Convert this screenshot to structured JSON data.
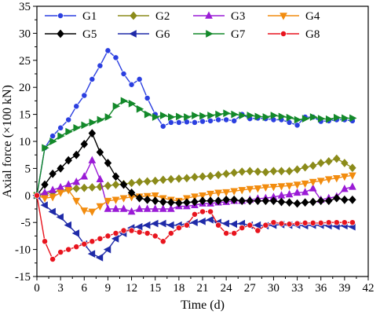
{
  "chart_data": {
    "type": "line",
    "title": "",
    "xlabel": "Time (d)",
    "ylabel": "Axial force (×100 kN)",
    "xlim": [
      0,
      42
    ],
    "ylim": [
      -15,
      35
    ],
    "xticks": [
      0,
      3,
      6,
      9,
      12,
      15,
      18,
      21,
      24,
      27,
      30,
      33,
      36,
      39,
      42
    ],
    "yticks": [
      -15,
      -10,
      -5,
      0,
      5,
      10,
      15,
      20,
      25,
      30,
      35
    ],
    "grid": false,
    "legend_position": "top-left",
    "series": [
      {
        "name": "G1",
        "color": "#2b3fe0",
        "marker": "circle",
        "x": [
          0,
          1,
          2,
          3,
          4,
          5,
          6,
          7,
          8,
          9,
          10,
          11,
          12,
          13,
          14,
          15,
          16,
          17,
          18,
          19,
          20,
          21,
          22,
          23,
          24,
          25,
          26,
          27,
          28,
          29,
          30,
          31,
          32,
          33,
          34,
          35,
          36,
          37,
          38,
          39,
          40
        ],
        "y": [
          0,
          8.8,
          11,
          12.5,
          14,
          16.5,
          18.5,
          21.5,
          24,
          26.8,
          25.5,
          22.5,
          20.5,
          21.5,
          18,
          15,
          12.8,
          13.5,
          13.5,
          13.6,
          13.5,
          13.7,
          13.8,
          14,
          14,
          13.8,
          15,
          14.2,
          14.3,
          14.2,
          14,
          14,
          13.5,
          13,
          14.5,
          14.5,
          13.7,
          13.8,
          14,
          14,
          13.8
        ]
      },
      {
        "name": "G2",
        "color": "#8b8b1a",
        "marker": "diamond",
        "x": [
          0,
          1,
          2,
          3,
          4,
          5,
          6,
          7,
          8,
          9,
          10,
          11,
          12,
          13,
          14,
          15,
          16,
          17,
          18,
          19,
          20,
          21,
          22,
          23,
          24,
          25,
          26,
          27,
          28,
          29,
          30,
          31,
          32,
          33,
          34,
          35,
          36,
          37,
          38,
          39,
          40
        ],
        "y": [
          0,
          0.3,
          0.6,
          0.9,
          1.1,
          1.3,
          1.4,
          1.5,
          1.6,
          1.8,
          2,
          2.1,
          2.3,
          2.5,
          2.6,
          2.7,
          2.9,
          3,
          3.1,
          3.2,
          3.4,
          3.5,
          3.6,
          3.8,
          4,
          4.2,
          4.4,
          4.5,
          4.4,
          4.3,
          4.5,
          4.5,
          4.5,
          4.8,
          5.2,
          5.5,
          6,
          6.3,
          6.8,
          6,
          5.1
        ]
      },
      {
        "name": "G3",
        "color": "#9a1bd6",
        "marker": "triangle-up",
        "x": [
          0,
          1,
          2,
          3,
          4,
          5,
          6,
          7,
          8,
          9,
          10,
          11,
          12,
          13,
          14,
          15,
          16,
          17,
          18,
          19,
          20,
          21,
          22,
          23,
          24,
          25,
          26,
          27,
          28,
          29,
          30,
          31,
          32,
          33,
          34,
          35,
          36,
          37,
          38,
          39,
          40
        ],
        "y": [
          0,
          0.5,
          1,
          1.5,
          2,
          2.5,
          3.5,
          6.5,
          3,
          -2.5,
          -2.5,
          -2.5,
          -3,
          -2.5,
          -2.5,
          -2.5,
          -2.5,
          -2.5,
          -2,
          -2,
          -1.8,
          -1.5,
          -1.5,
          -1.3,
          -1.2,
          -1,
          -1,
          -0.8,
          -0.6,
          -0.5,
          -0.3,
          0,
          0.2,
          0.5,
          0.6,
          1.3,
          -0.8,
          -0.5,
          -0.2,
          1.2,
          1.6
        ]
      },
      {
        "name": "G4",
        "color": "#f28c0f",
        "marker": "triangle-down",
        "x": [
          0,
          1,
          2,
          3,
          4,
          5,
          6,
          7,
          8,
          9,
          10,
          11,
          12,
          13,
          14,
          15,
          16,
          17,
          18,
          19,
          20,
          21,
          22,
          23,
          24,
          25,
          26,
          27,
          28,
          29,
          30,
          31,
          32,
          33,
          34,
          35,
          36,
          37,
          38,
          39,
          40
        ],
        "y": [
          0,
          -0.5,
          -0.3,
          0.5,
          1,
          -1,
          -2.8,
          -3,
          -2,
          -1,
          -0.8,
          -0.5,
          -0.3,
          -0.2,
          -0.1,
          0,
          -0.5,
          -0.8,
          -1,
          -0.5,
          -0.2,
          0,
          0.3,
          0.5,
          0.6,
          0.8,
          1,
          1.2,
          1.3,
          1.5,
          1.6,
          1.7,
          1.8,
          2,
          2.2,
          2.5,
          2.7,
          3,
          3.2,
          3.5,
          3.7
        ]
      },
      {
        "name": "G5",
        "color": "#000000",
        "marker": "diamond",
        "x": [
          0,
          1,
          2,
          3,
          4,
          5,
          6,
          7,
          8,
          9,
          10,
          11,
          12,
          13,
          14,
          15,
          16,
          17,
          18,
          19,
          20,
          21,
          22,
          23,
          24,
          25,
          26,
          27,
          28,
          29,
          30,
          31,
          32,
          33,
          34,
          35,
          36,
          37,
          38,
          39,
          40
        ],
        "y": [
          0,
          2,
          4,
          5,
          6.5,
          7.5,
          9.5,
          11.5,
          8,
          6,
          3.5,
          2,
          0.5,
          -0.5,
          -0.8,
          -1,
          -1.2,
          -1.3,
          -1.4,
          -1.3,
          -1.2,
          -1,
          -1,
          -1,
          -0.8,
          -0.8,
          -1,
          -1,
          -1,
          -1,
          -1,
          -1.2,
          -1.3,
          -1.5,
          -1.3,
          -1.2,
          -1,
          -1,
          -0.5,
          -0.8,
          -0.8
        ]
      },
      {
        "name": "G6",
        "color": "#1f2aa8",
        "marker": "triangle-left",
        "x": [
          0,
          1,
          2,
          3,
          4,
          5,
          6,
          7,
          8,
          9,
          10,
          11,
          12,
          13,
          14,
          15,
          16,
          17,
          18,
          19,
          20,
          21,
          22,
          23,
          24,
          25,
          26,
          27,
          28,
          29,
          30,
          31,
          32,
          33,
          34,
          35,
          36,
          37,
          38,
          39,
          40
        ],
        "y": [
          0,
          -1.8,
          -3,
          -4,
          -5.5,
          -7,
          -9,
          -10.8,
          -11.5,
          -10,
          -8,
          -7,
          -6,
          -5.8,
          -5.5,
          -5.2,
          -5.2,
          -5.5,
          -5.5,
          -5.3,
          -5,
          -4.8,
          -4.5,
          -5,
          -5.2,
          -5.3,
          -5.2,
          -5.5,
          -5.5,
          -5.6,
          -5.5,
          -5.4,
          -5.5,
          -5.5,
          -5.6,
          -5.5,
          -5.5,
          -5.6,
          -5.7,
          -5.6,
          -5.8
        ]
      },
      {
        "name": "G7",
        "color": "#13892a",
        "marker": "triangle-right",
        "x": [
          0,
          1,
          2,
          3,
          4,
          5,
          6,
          7,
          8,
          9,
          10,
          11,
          12,
          13,
          14,
          15,
          16,
          17,
          18,
          19,
          20,
          21,
          22,
          23,
          24,
          25,
          26,
          27,
          28,
          29,
          30,
          31,
          32,
          33,
          34,
          35,
          36,
          37,
          38,
          39,
          40
        ],
        "y": [
          0,
          8.8,
          10,
          11,
          11.8,
          12.5,
          13,
          13.5,
          14,
          14.5,
          16.5,
          17.5,
          17,
          16,
          15,
          14.5,
          14.8,
          14.5,
          14.6,
          14.5,
          14.8,
          14.7,
          14.8,
          15,
          15.2,
          15,
          14.8,
          14.8,
          14.6,
          14.5,
          14.8,
          14.6,
          14.4,
          14,
          14.2,
          14.5,
          14.2,
          14.1,
          14.4,
          14.3,
          14.3
        ]
      },
      {
        "name": "G8",
        "color": "#e8141e",
        "marker": "circle",
        "x": [
          0,
          1,
          2,
          3,
          4,
          5,
          6,
          7,
          8,
          9,
          10,
          11,
          12,
          13,
          14,
          15,
          16,
          17,
          18,
          19,
          20,
          21,
          22,
          23,
          24,
          25,
          26,
          27,
          28,
          29,
          30,
          31,
          32,
          33,
          34,
          35,
          36,
          37,
          38,
          39,
          40
        ],
        "y": [
          0,
          -8.5,
          -11.8,
          -10.5,
          -10,
          -9.5,
          -9,
          -8.5,
          -8,
          -7.5,
          -7,
          -6.5,
          -6.5,
          -6.8,
          -7,
          -7.5,
          -8.5,
          -7,
          -6,
          -5.5,
          -3.5,
          -3,
          -3,
          -5.5,
          -7,
          -7,
          -6,
          -5.5,
          -6.5,
          -5.5,
          -5,
          -5.2,
          -5.3,
          -5.2,
          -5.1,
          -5.1,
          -5.1,
          -5,
          -5,
          -5,
          -5
        ]
      }
    ]
  }
}
